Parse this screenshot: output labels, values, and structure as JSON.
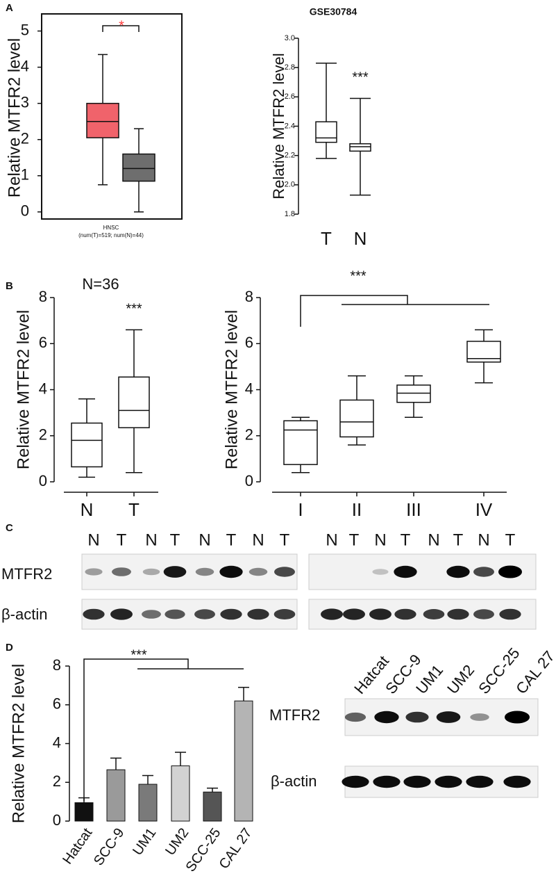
{
  "chart_data": [
    {
      "type": "box",
      "panel": "A",
      "ylabel": "Relative MTFR2 level",
      "xlabel": "HNSC",
      "xlabel_note": "(num(T)=519; num(N)=44)",
      "categories": [
        null,
        null
      ],
      "boxes": [
        {
          "min": 0.75,
          "q1": 2.05,
          "median": 2.5,
          "q3": 3.0,
          "max": 4.35,
          "color": "#f0636b"
        },
        {
          "min": 0,
          "q1": 0.85,
          "median": 1.2,
          "q3": 1.6,
          "max": 2.3,
          "color": "#6e6e6e"
        }
      ],
      "ylim": [
        -0.1,
        5.3
      ],
      "yticks": [
        0,
        1,
        2,
        3,
        4,
        5
      ],
      "annotation": "*",
      "annotation_color": "#ff3b3b"
    },
    {
      "type": "box",
      "title": "GSE30784",
      "ylabel": "Relative MTFR2 level",
      "categories": [
        "T",
        "N"
      ],
      "boxes": [
        {
          "min": 2.18,
          "q1": 2.29,
          "median": 2.32,
          "q3": 2.43,
          "max": 2.83,
          "color": "#ffffff"
        },
        {
          "min": 1.93,
          "q1": 2.23,
          "median": 2.26,
          "q3": 2.28,
          "max": 2.59,
          "color": "#ffffff"
        }
      ],
      "ylim": [
        1.8,
        3.0
      ],
      "yticks": [
        1.8,
        {
          "value": 2.0,
          "label": "2.0"
        },
        2.2,
        2.4,
        2.6,
        2.8,
        {
          "value": 3.0,
          "label": "3.0"
        }
      ],
      "annotation": "***"
    },
    {
      "type": "box",
      "panel": "B",
      "subtitle": "N=36",
      "ylabel": "Relative MTFR2 level",
      "categories": [
        "N",
        "T"
      ],
      "boxes": [
        {
          "min": 0.2,
          "q1": 0.65,
          "median": 1.8,
          "q3": 2.55,
          "max": 3.6,
          "color": "#ffffff"
        },
        {
          "min": 0.4,
          "q1": 2.35,
          "median": 3.1,
          "q3": 4.55,
          "max": 6.6,
          "color": "#ffffff"
        }
      ],
      "ylim": [
        0,
        8
      ],
      "yticks": [
        0,
        2,
        4,
        6,
        8
      ],
      "annotation": "***"
    },
    {
      "type": "box",
      "ylabel": "Relative MTFR2 level",
      "categories": [
        "I",
        "II",
        "III",
        "IV"
      ],
      "boxes": [
        {
          "min": 0.4,
          "q1": 0.75,
          "median": 2.25,
          "q3": 2.65,
          "max": 2.8,
          "color": "#ffffff"
        },
        {
          "min": 1.6,
          "q1": 1.95,
          "median": 2.6,
          "q3": 3.55,
          "max": 4.6,
          "color": "#ffffff"
        },
        {
          "min": 2.8,
          "q1": 3.45,
          "median": 3.85,
          "q3": 4.2,
          "max": 4.6,
          "color": "#ffffff"
        },
        {
          "min": 4.3,
          "q1": 5.2,
          "median": 5.35,
          "q3": 6.1,
          "max": 6.6,
          "color": "#ffffff"
        }
      ],
      "ylim": [
        0,
        8
      ],
      "yticks": [
        0,
        2,
        4,
        6,
        8
      ],
      "annotation": "***"
    },
    {
      "type": "bar",
      "panel": "D",
      "ylabel": "Relative MTFR2 level",
      "categories": [
        "Hatcat",
        "SCC-9",
        "UM1",
        "UM2",
        "SCC-25",
        "CAL 27"
      ],
      "values": [
        0.95,
        2.65,
        1.9,
        2.85,
        1.5,
        6.2
      ],
      "errors": [
        0.25,
        0.6,
        0.45,
        0.7,
        0.2,
        0.7
      ],
      "colors": [
        "#111111",
        "#9a9a9a",
        "#7a7a7a",
        "#d2d2d2",
        "#555555",
        "#b4b4b4"
      ],
      "ylim": [
        0,
        8
      ],
      "yticks": [
        0,
        2,
        4,
        6,
        8
      ],
      "annotation": "***"
    }
  ],
  "blots": [
    {
      "panel": "C",
      "groups": [
        {
          "lanes": [
            "N",
            "T",
            "N",
            "T",
            "N",
            "T",
            "N",
            "T"
          ]
        },
        {
          "lanes": [
            "N",
            "T",
            "N",
            "T",
            "N",
            "T",
            "N",
            "T"
          ]
        }
      ],
      "rows": [
        "MTFR2",
        "β-actin"
      ]
    },
    {
      "lanes": [
        "Hatcat",
        "SCC-9",
        "UM1",
        "UM2",
        "SCC-25",
        "CAL 27"
      ],
      "rows": [
        "MTFR2",
        "β-actin"
      ]
    }
  ]
}
